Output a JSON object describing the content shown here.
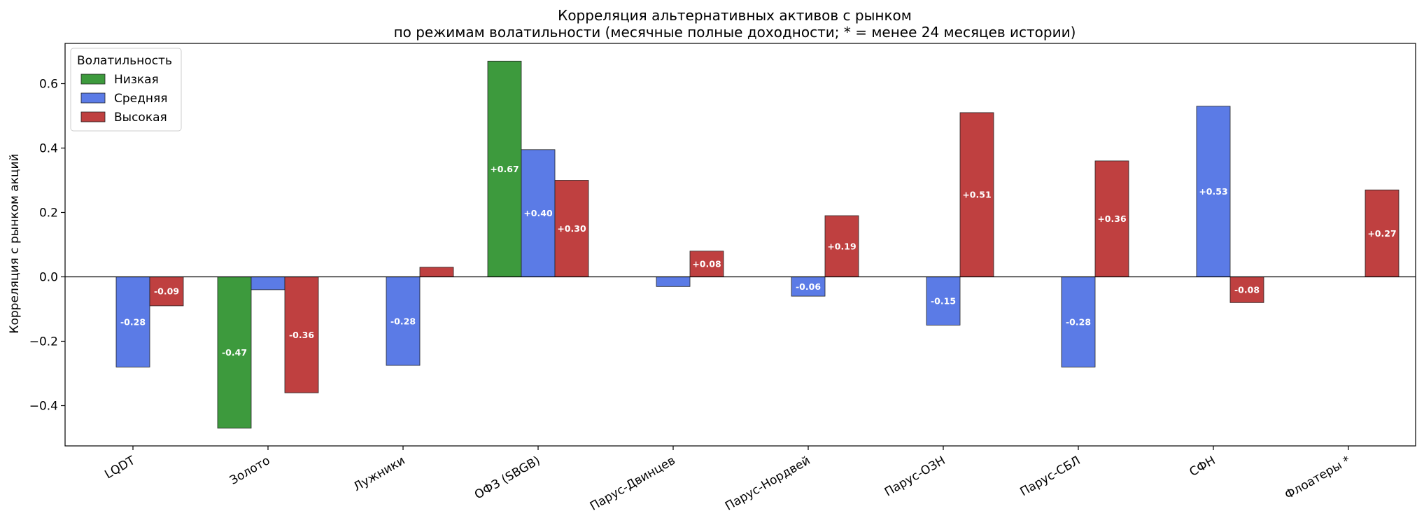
{
  "chart_data": {
    "type": "bar",
    "title_line1": "Корреляция альтернативных активов с рынком",
    "title_line2": "по режимам волатильности (месячные полные доходности; * = менее 24 месяцев истории)",
    "xlabel": "",
    "ylabel": "Корреляция с рынком акций",
    "ylim": [
      -0.525,
      0.725
    ],
    "yticks": [
      -0.4,
      -0.2,
      0.0,
      0.2,
      0.4,
      0.6
    ],
    "ytick_labels": [
      "−0.4",
      "−0.2",
      "0.0",
      "0.2",
      "0.4",
      "0.6"
    ],
    "categories": [
      "LQDT",
      "Золото",
      "Лужники",
      "ОФЗ (SBGB)",
      "Парус-Двинцев",
      "Парус-Нордвей",
      "Парус-ОЗН",
      "Парус-СБЛ",
      "СФН",
      "Флоатеры *"
    ],
    "legend": {
      "title": "Волатильность",
      "position": "top-left"
    },
    "grid": false,
    "series": [
      {
        "name": "Низкая",
        "color": "#3d9a3d",
        "values": [
          null,
          -0.47,
          null,
          0.67,
          null,
          null,
          null,
          null,
          null,
          null
        ],
        "labels": [
          null,
          "-0.47",
          null,
          "+0.67",
          null,
          null,
          null,
          null,
          null,
          null
        ]
      },
      {
        "name": "Средняя",
        "color": "#5b7be6",
        "values": [
          -0.28,
          -0.04,
          -0.275,
          0.395,
          -0.03,
          -0.06,
          -0.15,
          -0.28,
          0.53,
          null
        ],
        "labels": [
          "-0.28",
          null,
          "-0.28",
          "+0.40",
          null,
          "-0.06",
          "-0.15",
          "-0.28",
          "+0.53",
          null
        ]
      },
      {
        "name": "Высокая",
        "color": "#bf4040",
        "values": [
          -0.09,
          -0.36,
          0.03,
          0.3,
          0.08,
          0.19,
          0.51,
          0.36,
          -0.08,
          0.27
        ],
        "labels": [
          "-0.09",
          "-0.36",
          null,
          "+0.30",
          "+0.08",
          "+0.19",
          "+0.51",
          "+0.36",
          "-0.08",
          "+0.27"
        ]
      }
    ]
  }
}
